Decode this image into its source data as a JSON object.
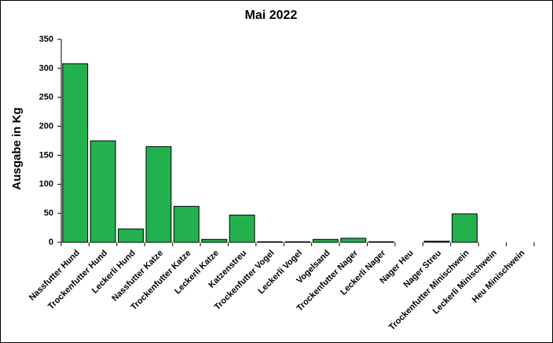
{
  "chart_data": {
    "type": "bar",
    "title": "Mai 2022",
    "y_label": "Ausgabe in Kg",
    "categories": [
      "Nassfutter Hund",
      "Trockenfutter Hund",
      "Leckerli Hund",
      "Nassfutter Katze",
      "Trockenfutter Katze",
      "Leckerli Katze",
      "Katzenstreu",
      "Trockenfutter Vogel",
      "Leckerli Vogel",
      "Vogelsand",
      "Trockenfutter Nager",
      "Leckerli Nager",
      "Nager Heu",
      "Nager Streu",
      "Trockenfutter Minischwein",
      "Leckerli Minischwein",
      "Heu Minischwein"
    ],
    "values": [
      308,
      175,
      23,
      165,
      62,
      5,
      47,
      1,
      1,
      5,
      7,
      1,
      0,
      2,
      49,
      0,
      0
    ],
    "color": "#22b14c",
    "ylim": [
      0,
      350
    ],
    "yticks": [
      0,
      50,
      100,
      150,
      200,
      250,
      300,
      350
    ],
    "grid": true
  }
}
